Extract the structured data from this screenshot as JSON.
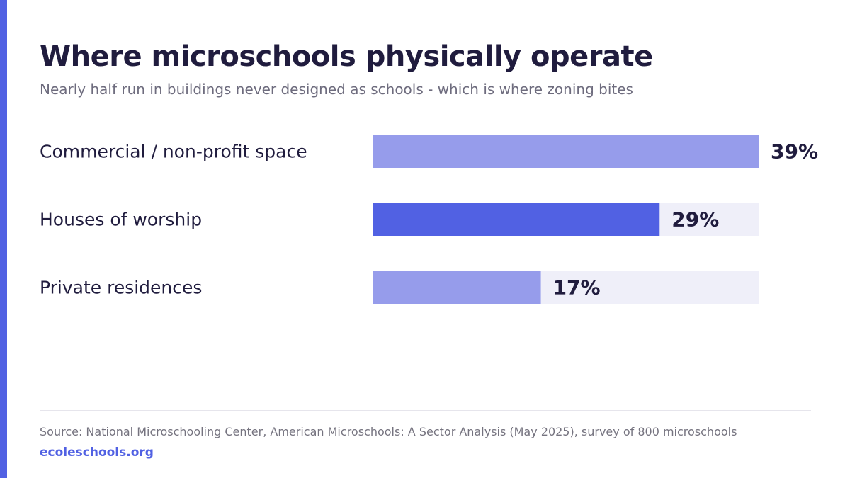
{
  "chart_data": {
    "type": "bar",
    "orientation": "horizontal",
    "title": "Where microschools physically operate",
    "subtitle": "Nearly half run in buildings never designed as schools - which is where zoning bites",
    "categories": [
      "Commercial / non-profit space",
      "Houses of worship",
      "Private residences"
    ],
    "values": [
      39,
      29,
      17
    ],
    "value_labels": [
      "39%",
      "29%",
      "17%"
    ],
    "unit": "%",
    "xlim": [
      0,
      39
    ],
    "grid": false,
    "legend": "none",
    "highlighted_category": "Houses of worship"
  },
  "colors": {
    "accent": "#5161e3",
    "bar_default": "#969ceb",
    "bar_highlight": "#5161e3",
    "track": "#efeff9",
    "text_dark": "#201c3e",
    "text_muted": "#6e6c7e"
  },
  "footer": {
    "source": "Source: National Microschooling Center, American Microschools: A Sector Analysis (May 2025), survey of 800 microschools",
    "site": "ecoleschools.org"
  }
}
